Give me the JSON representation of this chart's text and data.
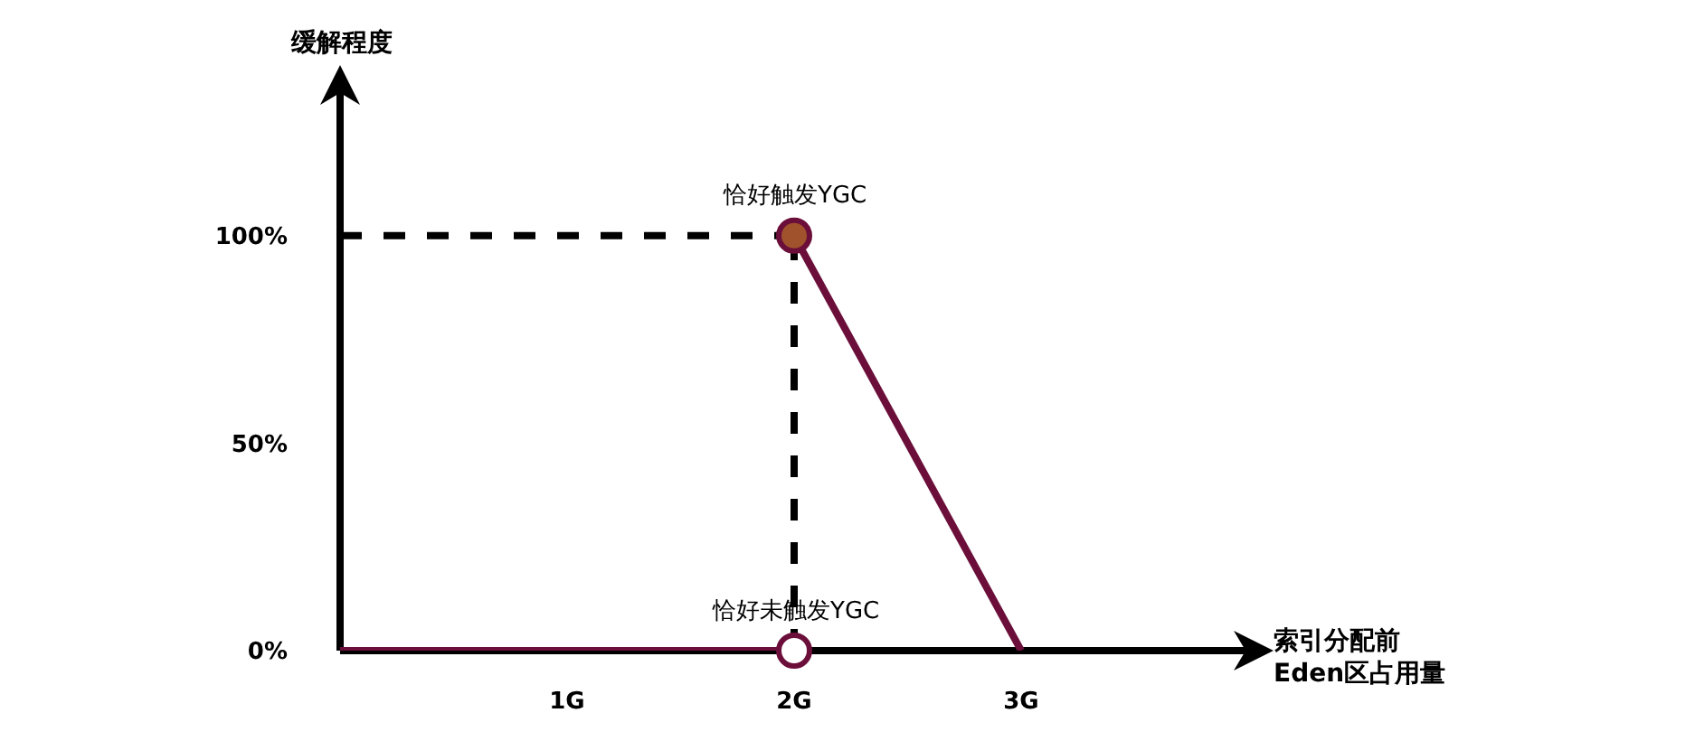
{
  "chart_data": {
    "type": "line",
    "xlabel": "索引分配前\nEden区占用量",
    "ylabel": "缓解程度",
    "xlim": [
      0,
      4
    ],
    "ylim": [
      0,
      135
    ],
    "xticks": [
      {
        "value": 1,
        "label": "1G"
      },
      {
        "value": 2,
        "label": "2G"
      },
      {
        "value": 3,
        "label": "3G"
      }
    ],
    "yticks": [
      {
        "value": 0,
        "label": "0%"
      },
      {
        "value": 50,
        "label": "50%"
      },
      {
        "value": 100,
        "label": "100%"
      }
    ],
    "series": [
      {
        "type": "line",
        "line_style": "dashed",
        "color": "#000000",
        "x": [
          0,
          2
        ],
        "values": [
          100,
          100
        ]
      },
      {
        "type": "line",
        "line_style": "dashed",
        "color": "#000000",
        "x": [
          2,
          2
        ],
        "values": [
          0,
          100
        ]
      },
      {
        "type": "line",
        "line_style": "solid",
        "color": "#6b0f3a",
        "x": [
          0,
          2
        ],
        "values": [
          0,
          0
        ]
      },
      {
        "type": "line",
        "line_style": "solid",
        "color": "#6b0f3a",
        "x": [
          2,
          3
        ],
        "values": [
          100,
          0
        ]
      },
      {
        "type": "scatter",
        "marker": "circle",
        "color": "#a0522d",
        "x": [
          2
        ],
        "values": [
          100
        ]
      },
      {
        "type": "scatter",
        "marker": "circle",
        "color": "#ffffff",
        "x": [
          2
        ],
        "values": [
          0
        ]
      }
    ],
    "annotations": [
      {
        "text": "恰好触发YGC",
        "x": 2,
        "y": 100
      },
      {
        "text": "恰好未触发YGC",
        "x": 2,
        "y": 0
      }
    ]
  }
}
